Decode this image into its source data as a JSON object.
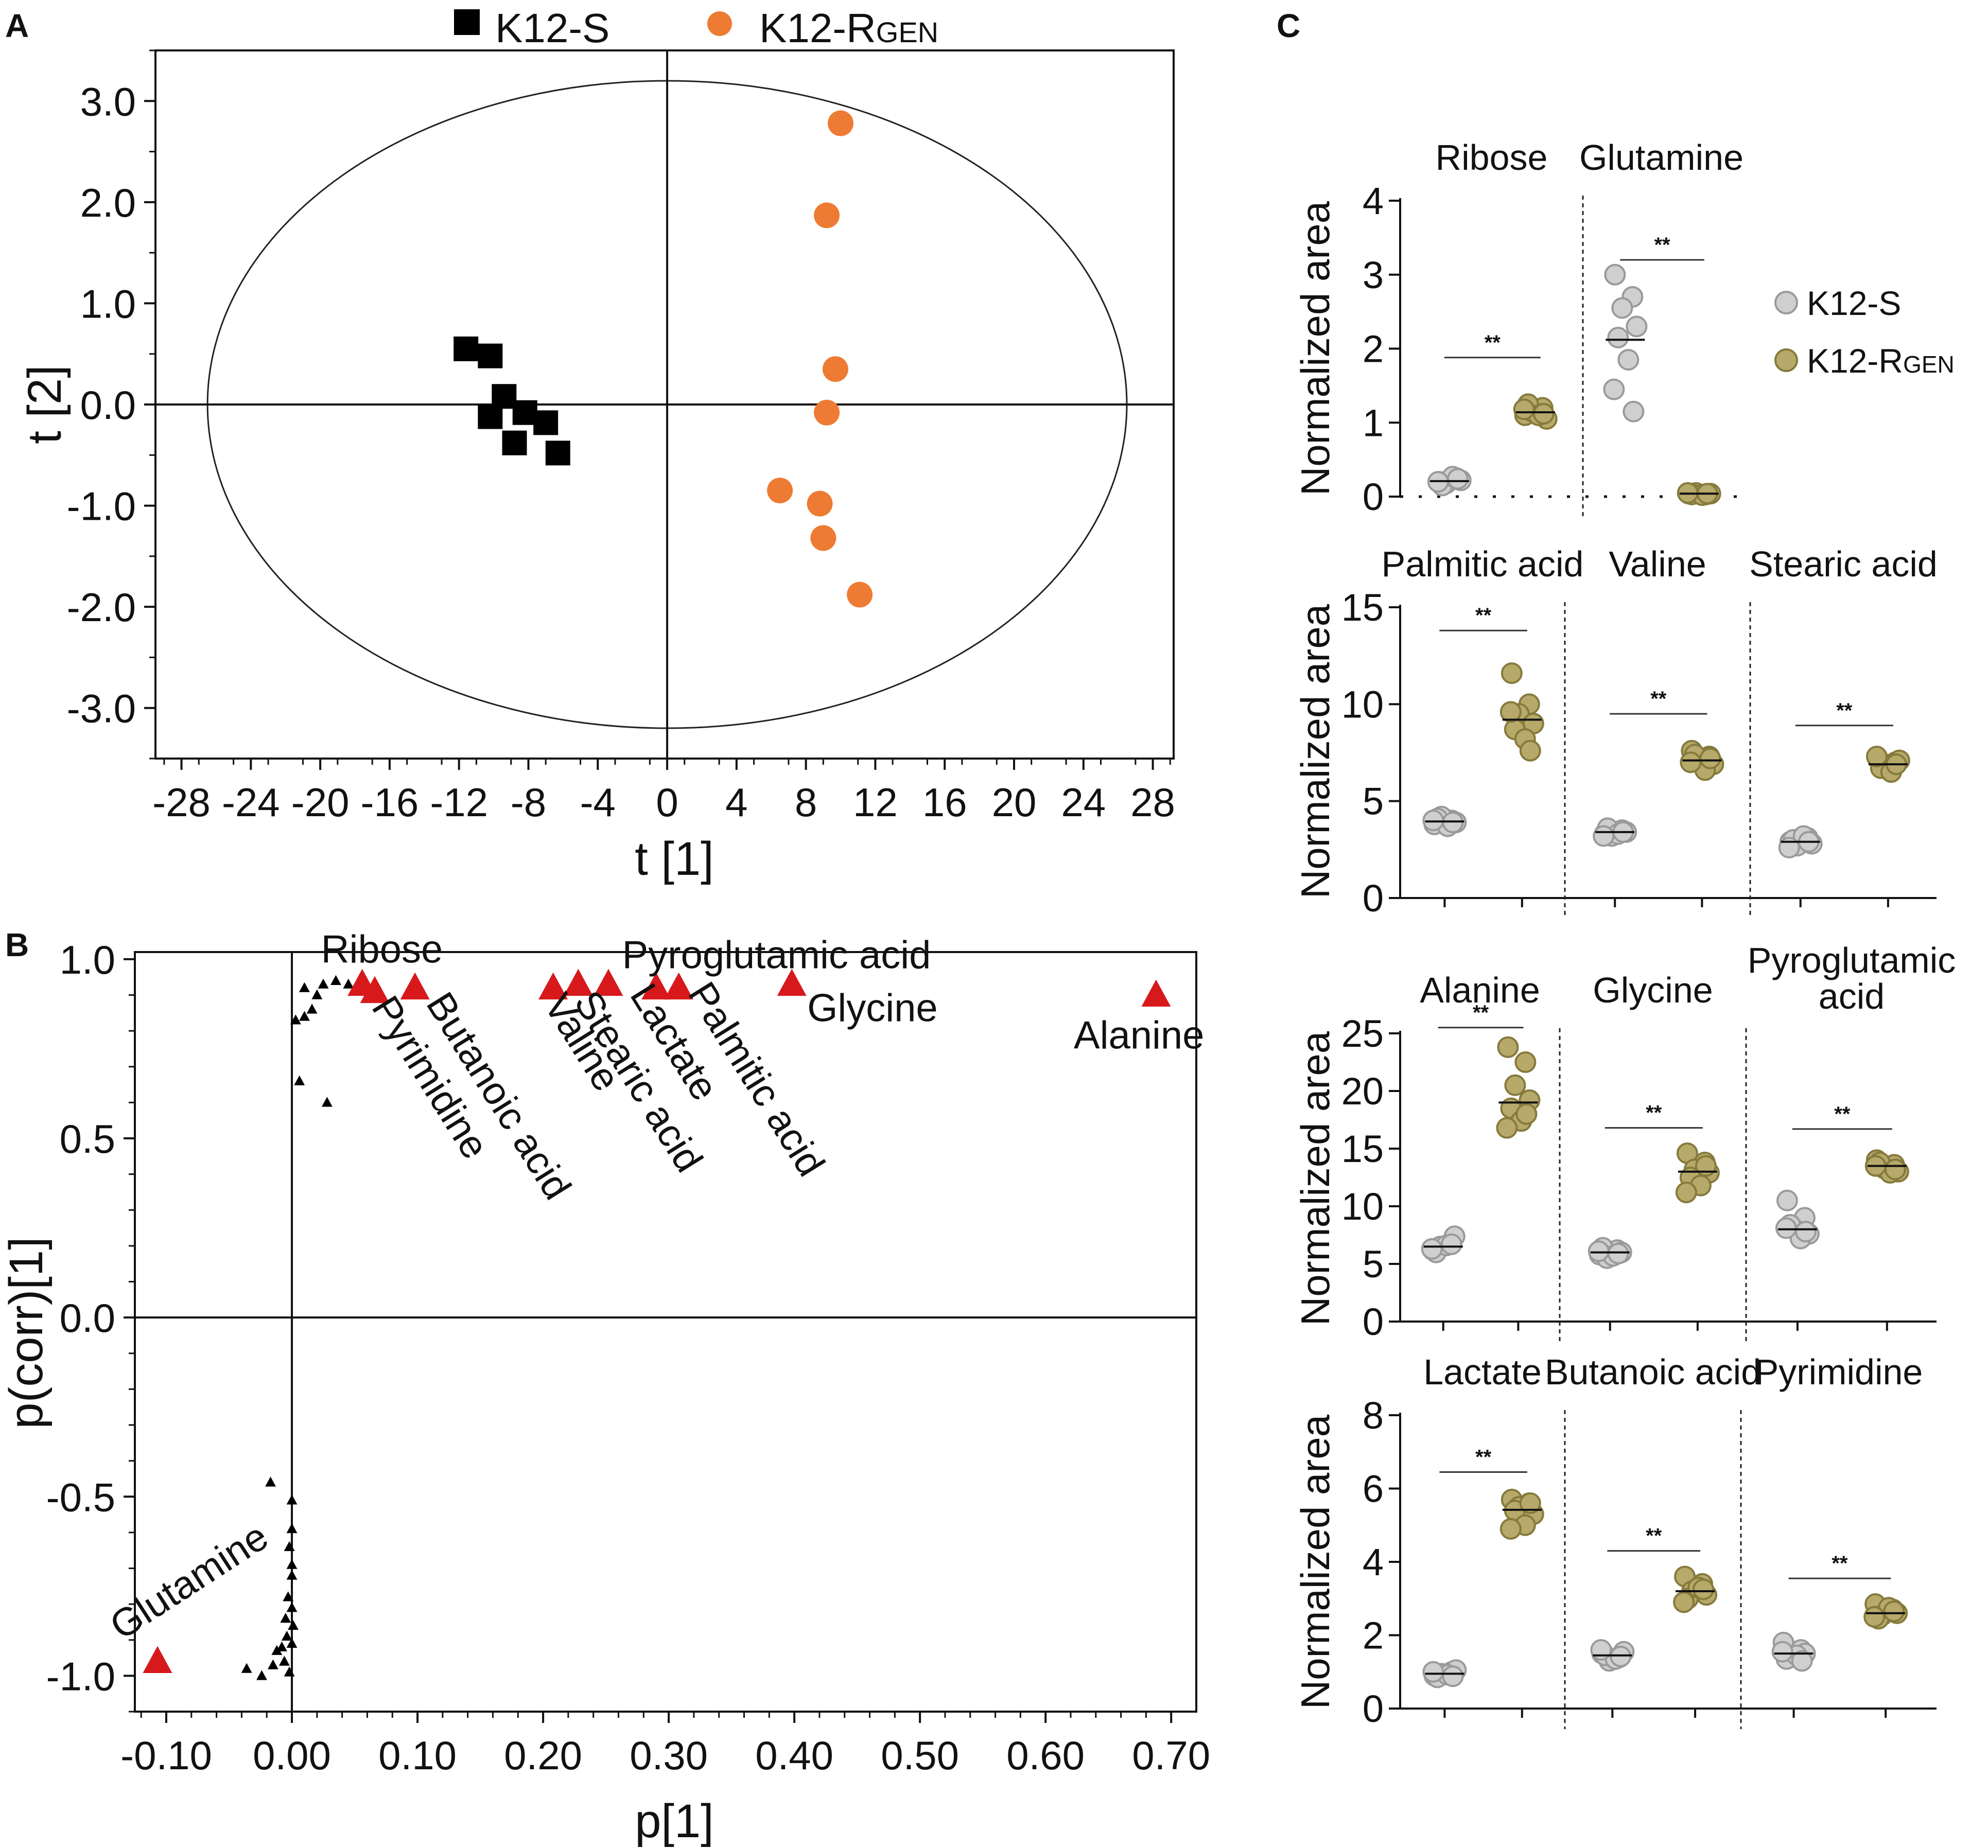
{
  "panel_labels": {
    "a": "A",
    "b": "B",
    "c": "C"
  },
  "colors": {
    "k12s_score": "#000000",
    "k12r_score": "#ee7b33",
    "vip": "#d7191c",
    "other": "#000000",
    "k12s_dot": "#cfcfcf",
    "k12r_dot": "#b6a96a",
    "dot_edge_s": "#9a9a9a",
    "dot_edge_r": "#857a3c"
  },
  "chart_data": [
    {
      "id": "A",
      "type": "scatter",
      "xlabel": "t [1]",
      "ylabel": "t [2]",
      "xlim": [
        -29.5,
        29.2
      ],
      "ylim": [
        -3.5,
        3.5
      ],
      "xticks": [
        -28,
        -24,
        -20,
        -16,
        -12,
        -8,
        -4,
        0,
        4,
        8,
        12,
        16,
        20,
        24,
        28
      ],
      "xtick_labels": [
        "-28",
        "-24",
        "-20",
        "-16",
        "-12",
        "-8",
        "-4",
        "0",
        "4",
        "8",
        "12",
        "16",
        "20",
        "24",
        "28"
      ],
      "yticks": [
        3,
        2,
        1,
        0,
        -1,
        -2,
        -3
      ],
      "ytick_labels": [
        "3.0",
        "2.0",
        "1.0",
        "0.0",
        "-1.0",
        "-2.0",
        "-3.0"
      ],
      "hotelling_ellipse": {
        "rx": 26.5,
        "ry": 3.2
      },
      "legend": [
        {
          "marker": "square",
          "label": "K12-S"
        },
        {
          "marker": "circle",
          "label_main": "K12-R",
          "label_sub": "GEN"
        }
      ],
      "series": [
        {
          "name": "K12-S",
          "marker": "square",
          "points": [
            [
              -11.6,
              0.55
            ],
            [
              -10.2,
              0.48
            ],
            [
              -9.4,
              0.08
            ],
            [
              -10.2,
              -0.12
            ],
            [
              -8.2,
              -0.08
            ],
            [
              -7.0,
              -0.18
            ],
            [
              -8.8,
              -0.38
            ],
            [
              -6.3,
              -0.48
            ]
          ]
        },
        {
          "name": "K12-RGEN",
          "marker": "circle",
          "points": [
            [
              10.0,
              2.78
            ],
            [
              9.2,
              1.87
            ],
            [
              9.7,
              0.35
            ],
            [
              9.2,
              -0.08
            ],
            [
              6.5,
              -0.85
            ],
            [
              8.8,
              -0.98
            ],
            [
              9.0,
              -1.32
            ],
            [
              11.1,
              -1.88
            ]
          ]
        }
      ]
    },
    {
      "id": "B",
      "type": "scatter",
      "xlabel": "p[1]",
      "ylabel": "p(corr)[1]",
      "xlim": [
        -0.125,
        0.72
      ],
      "ylim": [
        -1.1,
        1.02
      ],
      "xticks": [
        -0.1,
        0.0,
        0.1,
        0.2,
        0.3,
        0.4,
        0.5,
        0.6,
        0.7
      ],
      "xtick_labels": [
        "-0.10",
        "0.00",
        "0.10",
        "0.20",
        "0.30",
        "0.40",
        "0.50",
        "0.60",
        "0.70"
      ],
      "yticks": [
        1.0,
        0.5,
        0.0,
        -0.5,
        -1.0
      ],
      "ytick_labels": [
        "1.0",
        "0.5",
        "0.0",
        "-0.5",
        "-1.0"
      ],
      "labeled_points": [
        {
          "label": "Ribose",
          "x": 0.056,
          "y": 0.93
        },
        {
          "label": "Pyrimidine",
          "x": 0.066,
          "y": 0.91
        },
        {
          "label": "Butanoic acid",
          "x": 0.098,
          "y": 0.92
        },
        {
          "label": "Valine",
          "x": 0.208,
          "y": 0.92
        },
        {
          "label": "Stearic acid",
          "x": 0.228,
          "y": 0.93
        },
        {
          "label": "Lactate",
          "x": 0.252,
          "y": 0.93
        },
        {
          "label": "Palmitic acid",
          "x": 0.29,
          "y": 0.92
        },
        {
          "label": "Pyroglutamic acid",
          "x": 0.308,
          "y": 0.92
        },
        {
          "label": "Glycine",
          "x": 0.398,
          "y": 0.93
        },
        {
          "label": "Alanine",
          "x": 0.688,
          "y": 0.9
        },
        {
          "label": "Glutamine",
          "x": -0.107,
          "y": -0.96
        }
      ],
      "other_points": [
        [
          0.01,
          0.84
        ],
        [
          0.016,
          0.86
        ],
        [
          0.003,
          0.83
        ],
        [
          0.006,
          0.66
        ],
        [
          0.028,
          0.6
        ],
        [
          0.01,
          0.92
        ],
        [
          0.025,
          0.93
        ],
        [
          0.035,
          0.94
        ],
        [
          0.045,
          0.93
        ],
        [
          0.02,
          0.9
        ],
        [
          -0.017,
          -0.46
        ],
        [
          0.0,
          -0.51
        ],
        [
          0.0,
          -0.59
        ],
        [
          -0.002,
          -0.64
        ],
        [
          0.0,
          -0.69
        ],
        [
          0.0,
          -0.72
        ],
        [
          -0.003,
          -0.78
        ],
        [
          0.0,
          -0.81
        ],
        [
          -0.005,
          -0.84
        ],
        [
          0.001,
          -0.86
        ],
        [
          -0.004,
          -0.89
        ],
        [
          0.0,
          -0.91
        ],
        [
          -0.008,
          -0.92
        ],
        [
          -0.012,
          -0.93
        ],
        [
          -0.036,
          -0.98
        ],
        [
          -0.024,
          -1.0
        ],
        [
          -0.006,
          -0.96
        ],
        [
          -0.015,
          -0.97
        ],
        [
          -0.002,
          -0.99
        ]
      ]
    },
    {
      "id": "C",
      "type": "strip",
      "ylabel": "Normalized area",
      "significance": "**",
      "legend": [
        {
          "label": "K12-S"
        },
        {
          "label_main": "K12-R",
          "label_sub": "GEN"
        }
      ],
      "rows": [
        {
          "ylim": [
            0,
            4
          ],
          "yticks": [
            0,
            1,
            2,
            3,
            4
          ],
          "ytick_labels": [
            "0",
            "1",
            "2",
            "3",
            "4"
          ],
          "zero_dotted": true,
          "panels": [
            {
              "title": "Ribose",
              "s": [
                0.2,
                0.25,
                0.18,
                0.22,
                0.15,
                0.27,
                0.2,
                0.24
              ],
              "r": [
                1.1,
                1.2,
                1.15,
                1.05,
                1.25,
                1.1,
                1.18,
                1.12
              ],
              "s_mean": 0.21,
              "r_mean": 1.14,
              "bracket_y": 1.88
            },
            {
              "title": "Glutamine",
              "s": [
                3.0,
                2.7,
                2.55,
                2.3,
                2.15,
                1.85,
                1.45,
                1.15
              ],
              "r": [
                0.04,
                0.03,
                0.05,
                0.04,
                0.03,
                0.02,
                0.05,
                0.04
              ],
              "s_mean": 2.12,
              "r_mean": 0.04,
              "bracket_y": 3.2
            }
          ]
        },
        {
          "ylim": [
            0,
            15
          ],
          "yticks": [
            0,
            5,
            10,
            15
          ],
          "ytick_labels": [
            "0",
            "5",
            "10",
            "15"
          ],
          "panels": [
            {
              "title": "Palmitic acid",
              "s": [
                3.8,
                4.0,
                4.2,
                3.9,
                4.1,
                3.7,
                4.0,
                3.9
              ],
              "r": [
                11.6,
                10.0,
                9.5,
                9.0,
                8.7,
                8.2,
                9.6,
                7.6
              ],
              "s_mean": 3.95,
              "r_mean": 9.2,
              "bracket_y": 13.8
            },
            {
              "title": "Valine",
              "s": [
                3.3,
                3.5,
                3.2,
                3.4,
                3.6,
                3.3,
                3.2,
                3.4
              ],
              "r": [
                7.6,
                7.3,
                7.1,
                6.9,
                7.4,
                6.6,
                7.0,
                7.2
              ],
              "s_mean": 3.4,
              "r_mean": 7.1,
              "bracket_y": 9.5
            },
            {
              "title": "Stearic acid",
              "s": [
                2.9,
                3.1,
                2.7,
                2.8,
                3.0,
                3.2,
                2.6,
                2.9
              ],
              "r": [
                7.2,
                7.0,
                6.8,
                7.1,
                6.7,
                6.5,
                7.3,
                6.9
              ],
              "s_mean": 2.9,
              "r_mean": 6.9,
              "bracket_y": 8.9
            }
          ]
        },
        {
          "ylim": [
            0,
            25
          ],
          "yticks": [
            0,
            5,
            10,
            15,
            20,
            25
          ],
          "ytick_labels": [
            "0",
            "5",
            "10",
            "15",
            "20",
            "25"
          ],
          "panels": [
            {
              "title": "Alanine",
              "s": [
                6.2,
                6.8,
                6.5,
                7.4,
                6.0,
                6.6,
                6.3,
                6.7
              ],
              "r": [
                23.8,
                22.5,
                20.5,
                19.2,
                18.5,
                17.4,
                16.8,
                18.0
              ],
              "s_mean": 6.5,
              "r_mean": 19.0,
              "bracket_y": 25.5
            },
            {
              "title": "Glycine",
              "s": [
                5.8,
                6.2,
                5.5,
                6.0,
                6.4,
                5.7,
                6.1,
                5.9
              ],
              "r": [
                14.6,
                13.8,
                13.2,
                12.9,
                12.5,
                11.8,
                11.2,
                13.5
              ],
              "s_mean": 6.0,
              "r_mean": 13.0,
              "bracket_y": 16.8
            },
            {
              "title": "Pyroglutamic acid",
              "title_lines": [
                "Pyroglutamic",
                "acid"
              ],
              "s": [
                10.5,
                9.0,
                8.0,
                7.6,
                8.4,
                7.2,
                8.1,
                7.8
              ],
              "r": [
                14.0,
                13.6,
                13.3,
                13.0,
                13.8,
                12.9,
                13.5,
                13.2
              ],
              "s_mean": 8.0,
              "r_mean": 13.5,
              "bracket_y": 16.7
            }
          ]
        },
        {
          "ylim": [
            0,
            8
          ],
          "yticks": [
            0,
            2,
            4,
            6,
            8
          ],
          "ytick_labels": [
            "0",
            "2",
            "4",
            "6",
            "8"
          ],
          "panels": [
            {
              "title": "Lactate",
              "s": [
                0.9,
                1.0,
                0.95,
                1.05,
                0.85,
                0.92,
                1.0,
                0.88
              ],
              "r": [
                5.7,
                5.6,
                5.5,
                5.3,
                5.4,
                5.0,
                4.9,
                5.6
              ],
              "s_mean": 0.95,
              "r_mean": 5.42,
              "bracket_y": 6.45
            },
            {
              "title": "Butanoic acid",
              "s": [
                1.5,
                1.4,
                1.3,
                1.55,
                1.45,
                1.35,
                1.6,
                1.42
              ],
              "r": [
                3.6,
                3.4,
                3.2,
                3.1,
                3.0,
                3.3,
                2.9,
                3.25
              ],
              "s_mean": 1.45,
              "r_mean": 3.2,
              "bracket_y": 4.3
            },
            {
              "title": "Pyrimidine",
              "s": [
                1.8,
                1.6,
                1.4,
                1.5,
                1.35,
                1.45,
                1.55,
                1.3
              ],
              "r": [
                2.85,
                2.7,
                2.55,
                2.6,
                2.45,
                2.75,
                2.5,
                2.65
              ],
              "s_mean": 1.5,
              "r_mean": 2.6,
              "bracket_y": 3.55
            }
          ]
        }
      ]
    }
  ]
}
